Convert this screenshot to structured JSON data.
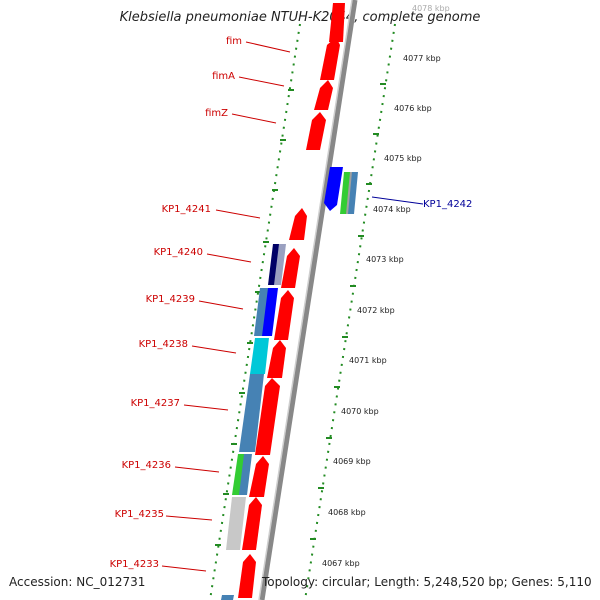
{
  "title": "Klebsiella pneumoniae NTUH-K2044, complete genome",
  "footer": {
    "accession": "Accession: NC_012731",
    "topology": "Topology: circular; Length: 5,248,520 bp; Genes: 5,110"
  },
  "scale_ticks": [
    "4078 kbp",
    "4077 kbp",
    "4076 kbp",
    "4075 kbp",
    "4074 kbp",
    "4073 kbp",
    "4072 kbp",
    "4071 kbp",
    "4070 kbp",
    "4069 kbp",
    "4068 kbp",
    "4067 kbp"
  ],
  "gene_labels_left": [
    "fim",
    "fimA",
    "fimZ",
    "KP1_4241",
    "KP1_4240",
    "KP1_4239",
    "KP1_4238",
    "KP1_4237",
    "KP1_4236",
    "KP1_4235",
    "KP1_4233"
  ],
  "gene_labels_right": [
    "KP1_4242"
  ],
  "colors": {
    "cds_red": "#ff0000",
    "backbone": "#888888",
    "ticks_green": "#228b22",
    "label_red": "#cc0000",
    "label_blue": "#000099",
    "cog_blue": "#0000ff",
    "cog_navy": "#000066",
    "cog_steel": "#4682b4",
    "cog_cyan": "#00c8d8",
    "cog_green": "#33cc33",
    "cog_gray": "#c8c8c8"
  }
}
